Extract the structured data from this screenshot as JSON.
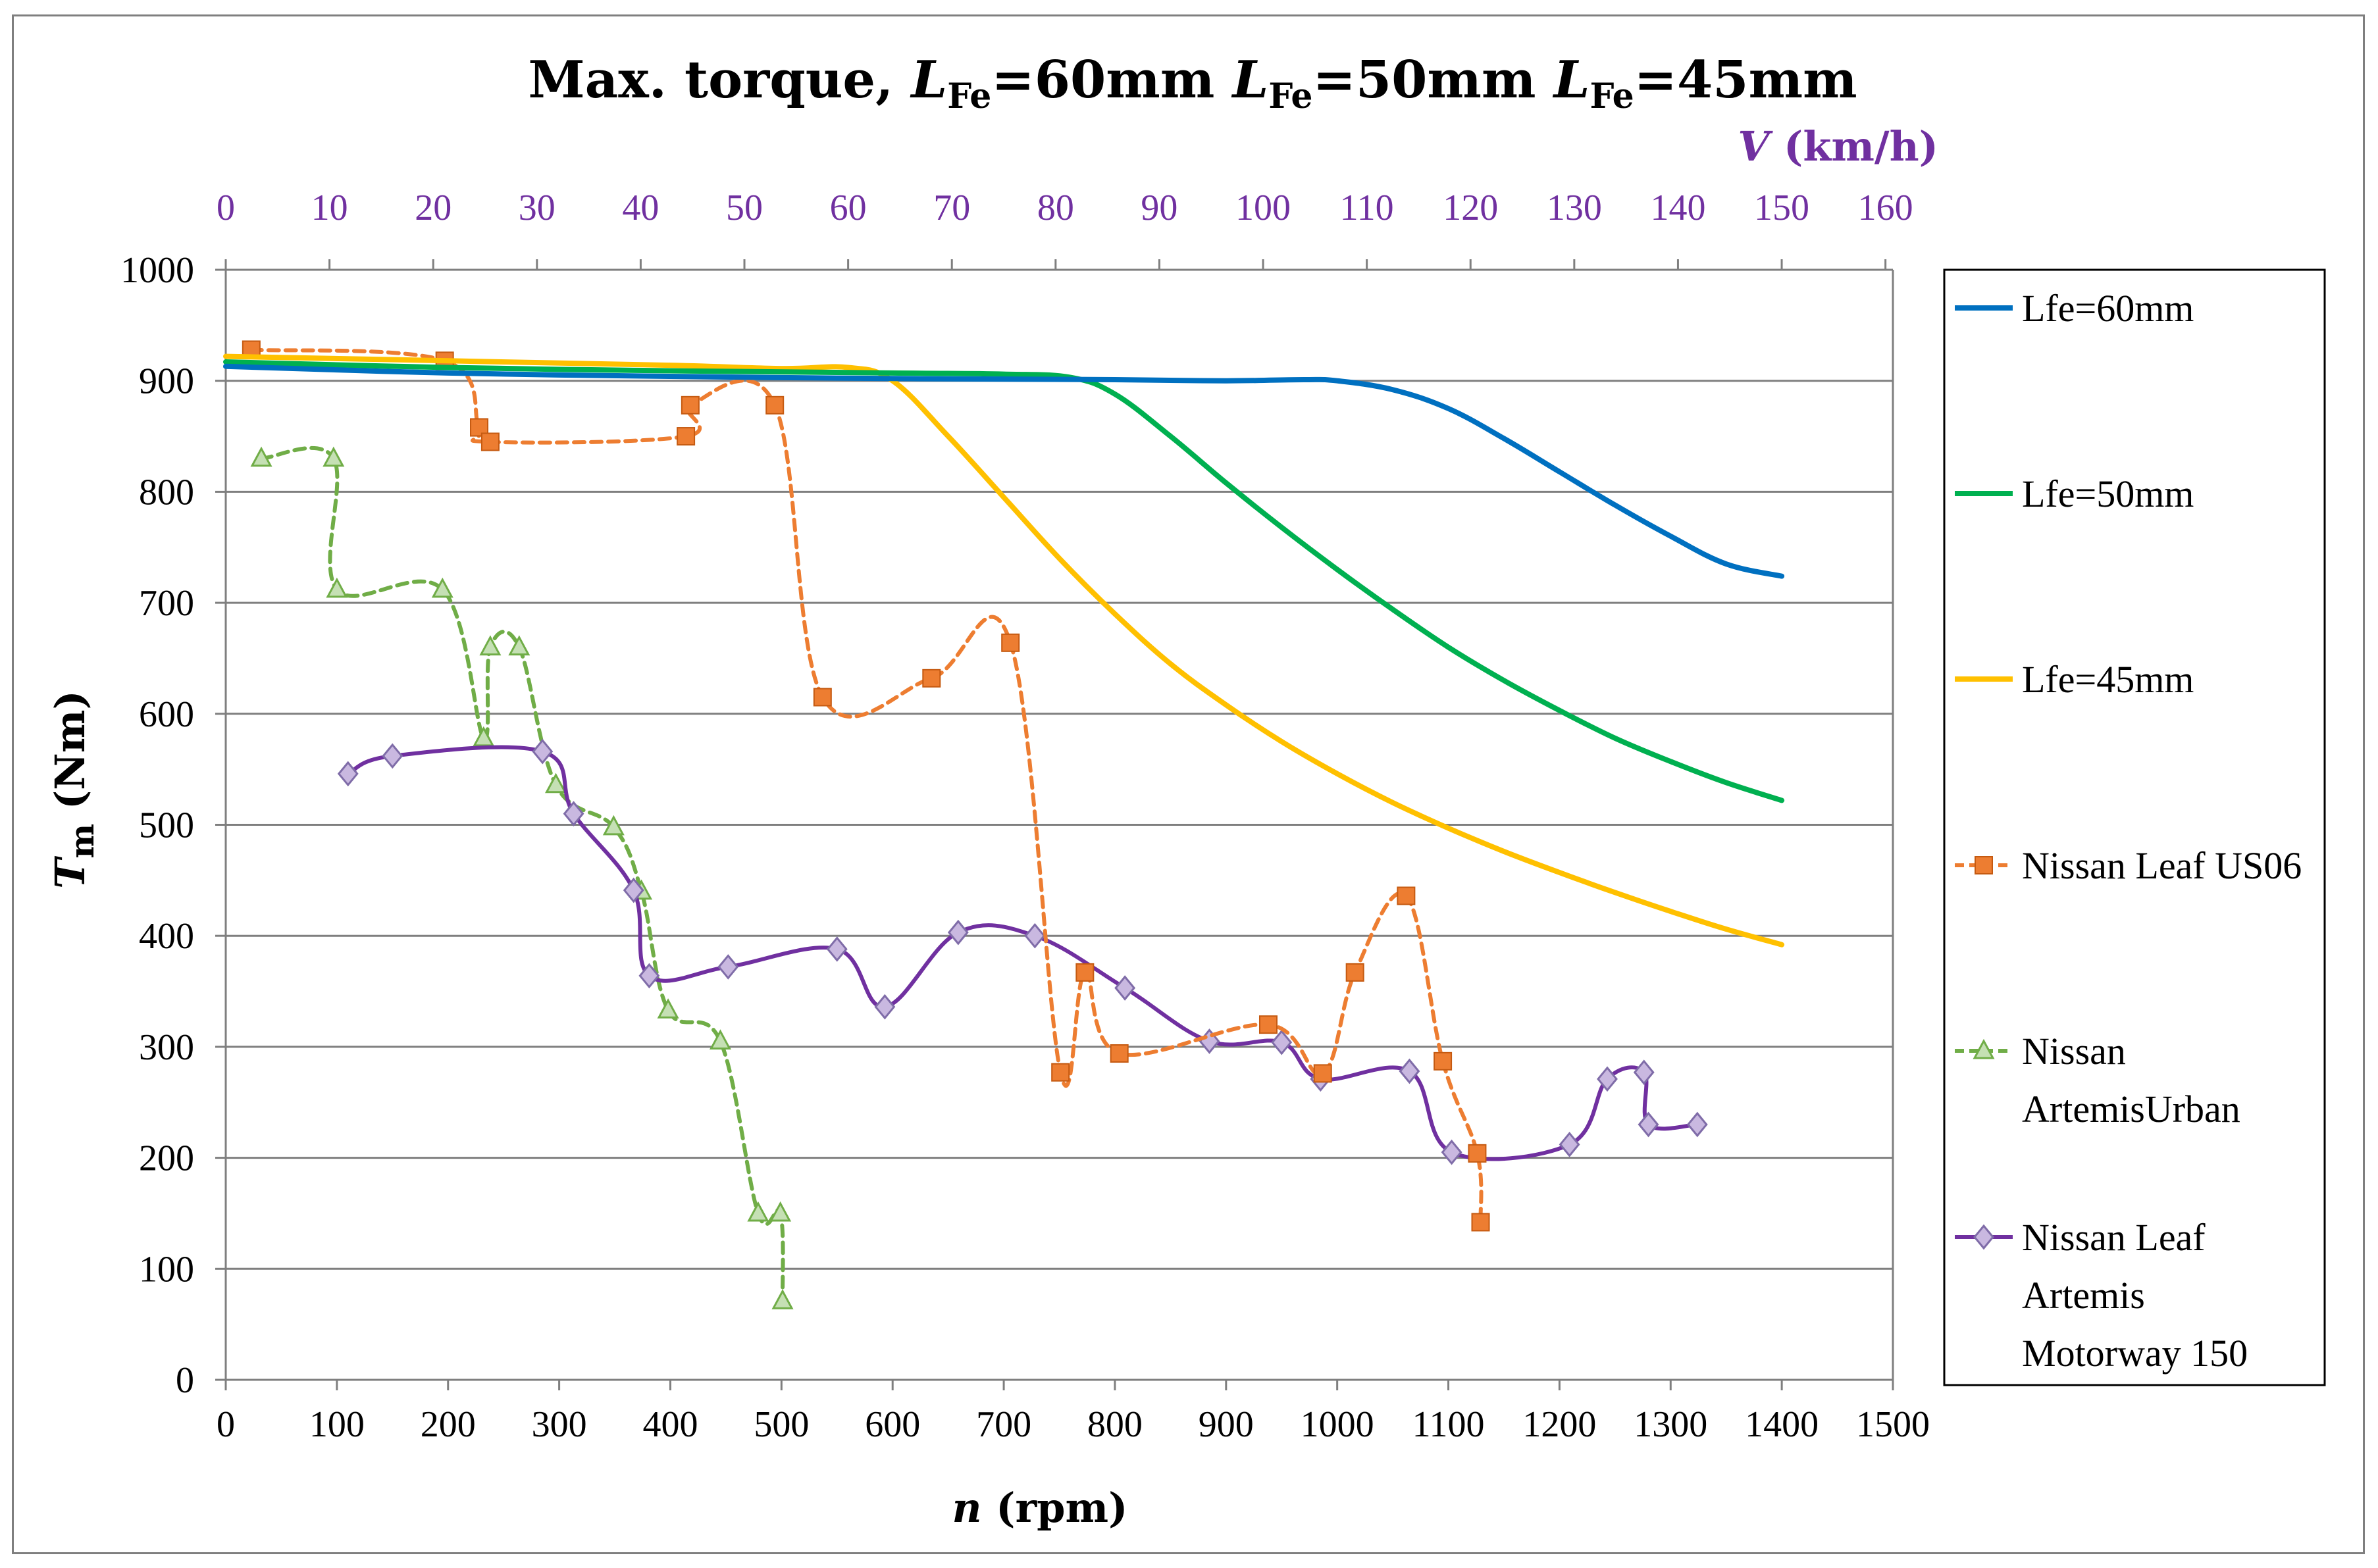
{
  "chart_data": {
    "type": "line",
    "title": {
      "prefix": "Max. torque, ",
      "parts": [
        {
          "var": "L",
          "sub": "Fe",
          "value": "=60mm"
        },
        {
          "var": "L",
          "sub": "Fe",
          "value": "=50mm"
        },
        {
          "var": "L",
          "sub": "Fe",
          "value": "=45mm"
        }
      ]
    },
    "x_axis": {
      "label_var": "n",
      "label_unit": " (rpm)",
      "min": 0,
      "max": 1500,
      "step": 100,
      "ticks": [
        "0",
        "100",
        "200",
        "300",
        "400",
        "500",
        "600",
        "700",
        "800",
        "900",
        "1000",
        "1100",
        "1200",
        "1300",
        "1400",
        "1500"
      ]
    },
    "y_axis": {
      "label_var": "T",
      "label_sub": "m",
      "label_unit": " (Nm)",
      "min": 0,
      "max": 1000,
      "step": 100,
      "ticks": [
        "0",
        "100",
        "200",
        "300",
        "400",
        "500",
        "600",
        "700",
        "800",
        "900",
        "1000"
      ]
    },
    "top_axis": {
      "label_var": "V",
      "label_unit": " (km/h)",
      "min": 0,
      "max": 160,
      "rpm_per_unit": 9.333,
      "ticks": [
        "0",
        "10",
        "20",
        "30",
        "40",
        "50",
        "60",
        "70",
        "80",
        "90",
        "100",
        "110",
        "120",
        "130",
        "140",
        "150",
        "160"
      ],
      "color": "#7030a0"
    },
    "grid": true,
    "legend": {
      "position": "right"
    },
    "series": [
      {
        "name": "Lfe=60mm",
        "color": "#0070c0",
        "style": "solid",
        "marker": "none",
        "points": [
          [
            0,
            913
          ],
          [
            200,
            907
          ],
          [
            400,
            904
          ],
          [
            600,
            902
          ],
          [
            800,
            901
          ],
          [
            900,
            900
          ],
          [
            970,
            901
          ],
          [
            1000,
            900
          ],
          [
            1050,
            892
          ],
          [
            1100,
            875
          ],
          [
            1150,
            848
          ],
          [
            1200,
            818
          ],
          [
            1250,
            788
          ],
          [
            1300,
            760
          ],
          [
            1350,
            735
          ],
          [
            1400,
            724
          ]
        ]
      },
      {
        "name": "Lfe=50mm",
        "color": "#00b050",
        "style": "solid",
        "marker": "none",
        "points": [
          [
            0,
            917
          ],
          [
            200,
            912
          ],
          [
            400,
            909
          ],
          [
            600,
            907
          ],
          [
            700,
            906
          ],
          [
            760,
            903
          ],
          [
            800,
            888
          ],
          [
            850,
            850
          ],
          [
            900,
            808
          ],
          [
            950,
            768
          ],
          [
            1000,
            730
          ],
          [
            1050,
            694
          ],
          [
            1100,
            660
          ],
          [
            1150,
            630
          ],
          [
            1200,
            603
          ],
          [
            1250,
            578
          ],
          [
            1300,
            557
          ],
          [
            1350,
            538
          ],
          [
            1400,
            522
          ]
        ]
      },
      {
        "name": "Lfe=45mm",
        "color": "#ffc000",
        "style": "solid",
        "marker": "none",
        "points": [
          [
            0,
            922
          ],
          [
            200,
            918
          ],
          [
            400,
            914
          ],
          [
            500,
            911
          ],
          [
            560,
            912
          ],
          [
            600,
            900
          ],
          [
            650,
            850
          ],
          [
            700,
            795
          ],
          [
            750,
            740
          ],
          [
            800,
            690
          ],
          [
            850,
            645
          ],
          [
            900,
            608
          ],
          [
            950,
            575
          ],
          [
            1000,
            546
          ],
          [
            1050,
            520
          ],
          [
            1100,
            497
          ],
          [
            1150,
            476
          ],
          [
            1200,
            457
          ],
          [
            1250,
            439
          ],
          [
            1300,
            422
          ],
          [
            1350,
            406
          ],
          [
            1400,
            392
          ]
        ]
      },
      {
        "name": "Nissan Leaf US06",
        "color": "#ed7d31",
        "style": "dashed",
        "marker": "square",
        "points": [
          [
            23,
            928
          ],
          [
            197,
            918
          ],
          [
            228,
            858
          ],
          [
            238,
            845
          ],
          [
            414,
            850
          ],
          [
            418,
            878
          ],
          [
            494,
            878
          ],
          [
            537,
            615
          ],
          [
            635,
            632
          ],
          [
            706,
            664
          ],
          [
            751,
            277
          ],
          [
            773,
            367
          ],
          [
            804,
            294
          ],
          [
            938,
            320
          ],
          [
            987,
            276
          ],
          [
            1016,
            367
          ],
          [
            1062,
            436
          ],
          [
            1095,
            287
          ],
          [
            1126,
            204
          ],
          [
            1129,
            142
          ]
        ]
      },
      {
        "name": "Nissan ArtemisUrban",
        "color": "#70ad47",
        "style": "dashed",
        "marker": "triangle",
        "points": [
          [
            32,
            830
          ],
          [
            97,
            830
          ],
          [
            100,
            712
          ],
          [
            195,
            712
          ],
          [
            232,
            578
          ],
          [
            238,
            660
          ],
          [
            264,
            660
          ],
          [
            297,
            536
          ],
          [
            349,
            498
          ],
          [
            374,
            440
          ],
          [
            398,
            333
          ],
          [
            445,
            305
          ],
          [
            479,
            150
          ],
          [
            499,
            150
          ],
          [
            501,
            71
          ]
        ]
      },
      {
        "name": "Nissan Leaf Artemis Motorway 150",
        "color": "#7030a0",
        "style": "solid",
        "marker": "diamond",
        "points": [
          [
            110,
            546
          ],
          [
            150,
            562
          ],
          [
            285,
            566
          ],
          [
            313,
            510
          ],
          [
            367,
            441
          ],
          [
            381,
            364
          ],
          [
            452,
            372
          ],
          [
            550,
            388
          ],
          [
            593,
            336
          ],
          [
            659,
            403
          ],
          [
            728,
            400
          ],
          [
            809,
            353
          ],
          [
            885,
            305
          ],
          [
            950,
            304
          ],
          [
            985,
            271
          ],
          [
            1065,
            278
          ],
          [
            1103,
            205
          ],
          [
            1209,
            212
          ],
          [
            1243,
            271
          ],
          [
            1276,
            277
          ],
          [
            1280,
            230
          ],
          [
            1324,
            230
          ]
        ]
      }
    ],
    "legend_labels": [
      [
        "Lfe=60mm"
      ],
      [
        "Lfe=50mm"
      ],
      [
        "Lfe=45mm"
      ],
      [
        "Nissan Leaf US06"
      ],
      [
        "Nissan",
        "ArtemisUrban"
      ],
      [
        "Nissan Leaf",
        "Artemis",
        "Motorway 150"
      ]
    ]
  }
}
